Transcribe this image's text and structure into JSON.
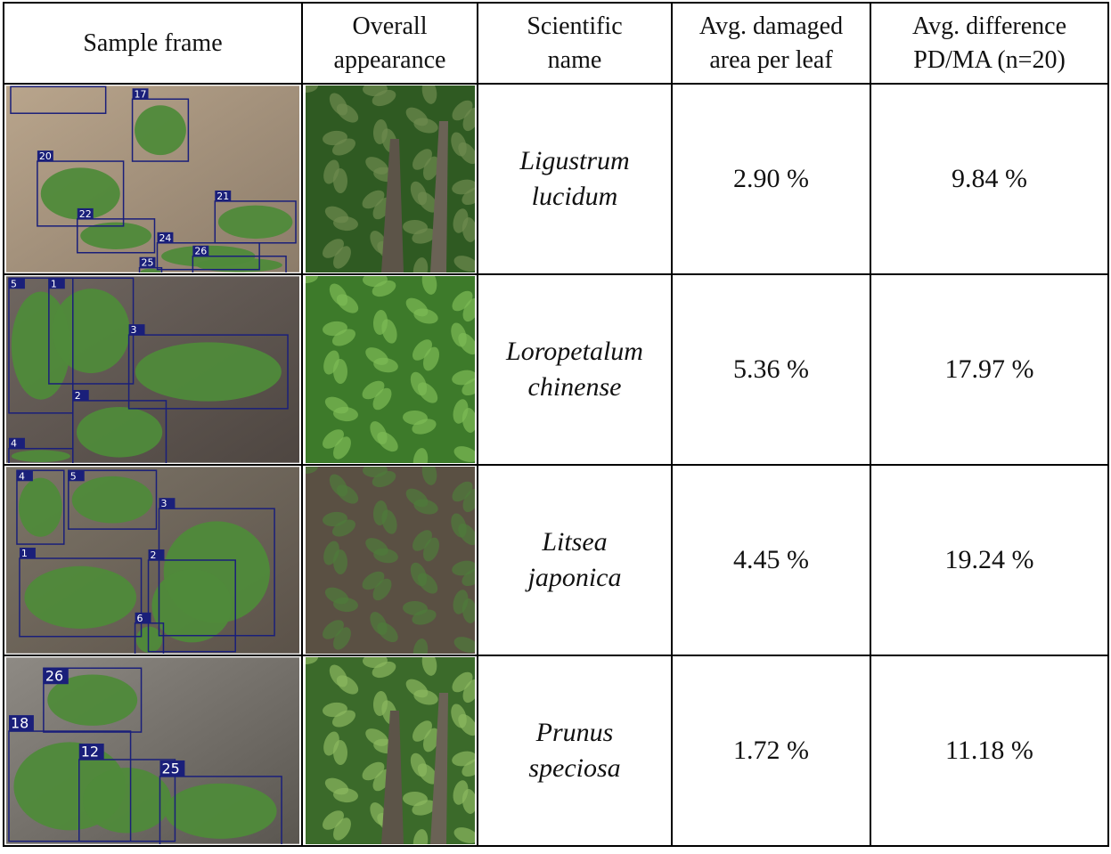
{
  "table": {
    "header": [
      "Sample frame",
      "Overall appearance",
      "Scientific name",
      "Avg. damaged area per leaf",
      "Avg. difference PD/MA (n=20)"
    ],
    "rows": [
      {
        "frame_boxes": [
          "17",
          "20",
          "21",
          "22",
          "24",
          "26",
          "25"
        ],
        "name": "Ligustrum lucidum",
        "damaged": "2.90 %",
        "difference": "9.84 %"
      },
      {
        "frame_boxes": [
          "5",
          "1",
          "3",
          "2",
          "4"
        ],
        "name": "Loropetalum chinense",
        "damaged": "5.36 %",
        "difference": "17.97 %"
      },
      {
        "frame_boxes": [
          "4",
          "5",
          "3",
          "1",
          "2",
          "6"
        ],
        "name": "Litsea japonica",
        "damaged": "4.45 %",
        "difference": "19.24 %"
      },
      {
        "frame_boxes": [
          "26",
          "18",
          "12",
          "25"
        ],
        "name": "Prunus speciosa",
        "damaged": "1.72 %",
        "difference": "11.18 %"
      }
    ]
  }
}
